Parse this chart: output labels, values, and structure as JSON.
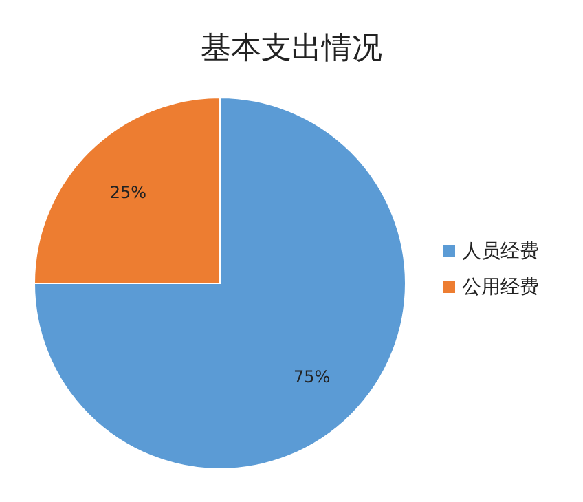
{
  "chart_data": {
    "type": "pie",
    "title": "基本支出情况",
    "categories": [
      "人员经费",
      "公用经费"
    ],
    "values": [
      75,
      25
    ],
    "colors": [
      "#5b9bd5",
      "#ed7d31"
    ],
    "value_labels": [
      "75%",
      "25%"
    ],
    "legend": "right"
  }
}
